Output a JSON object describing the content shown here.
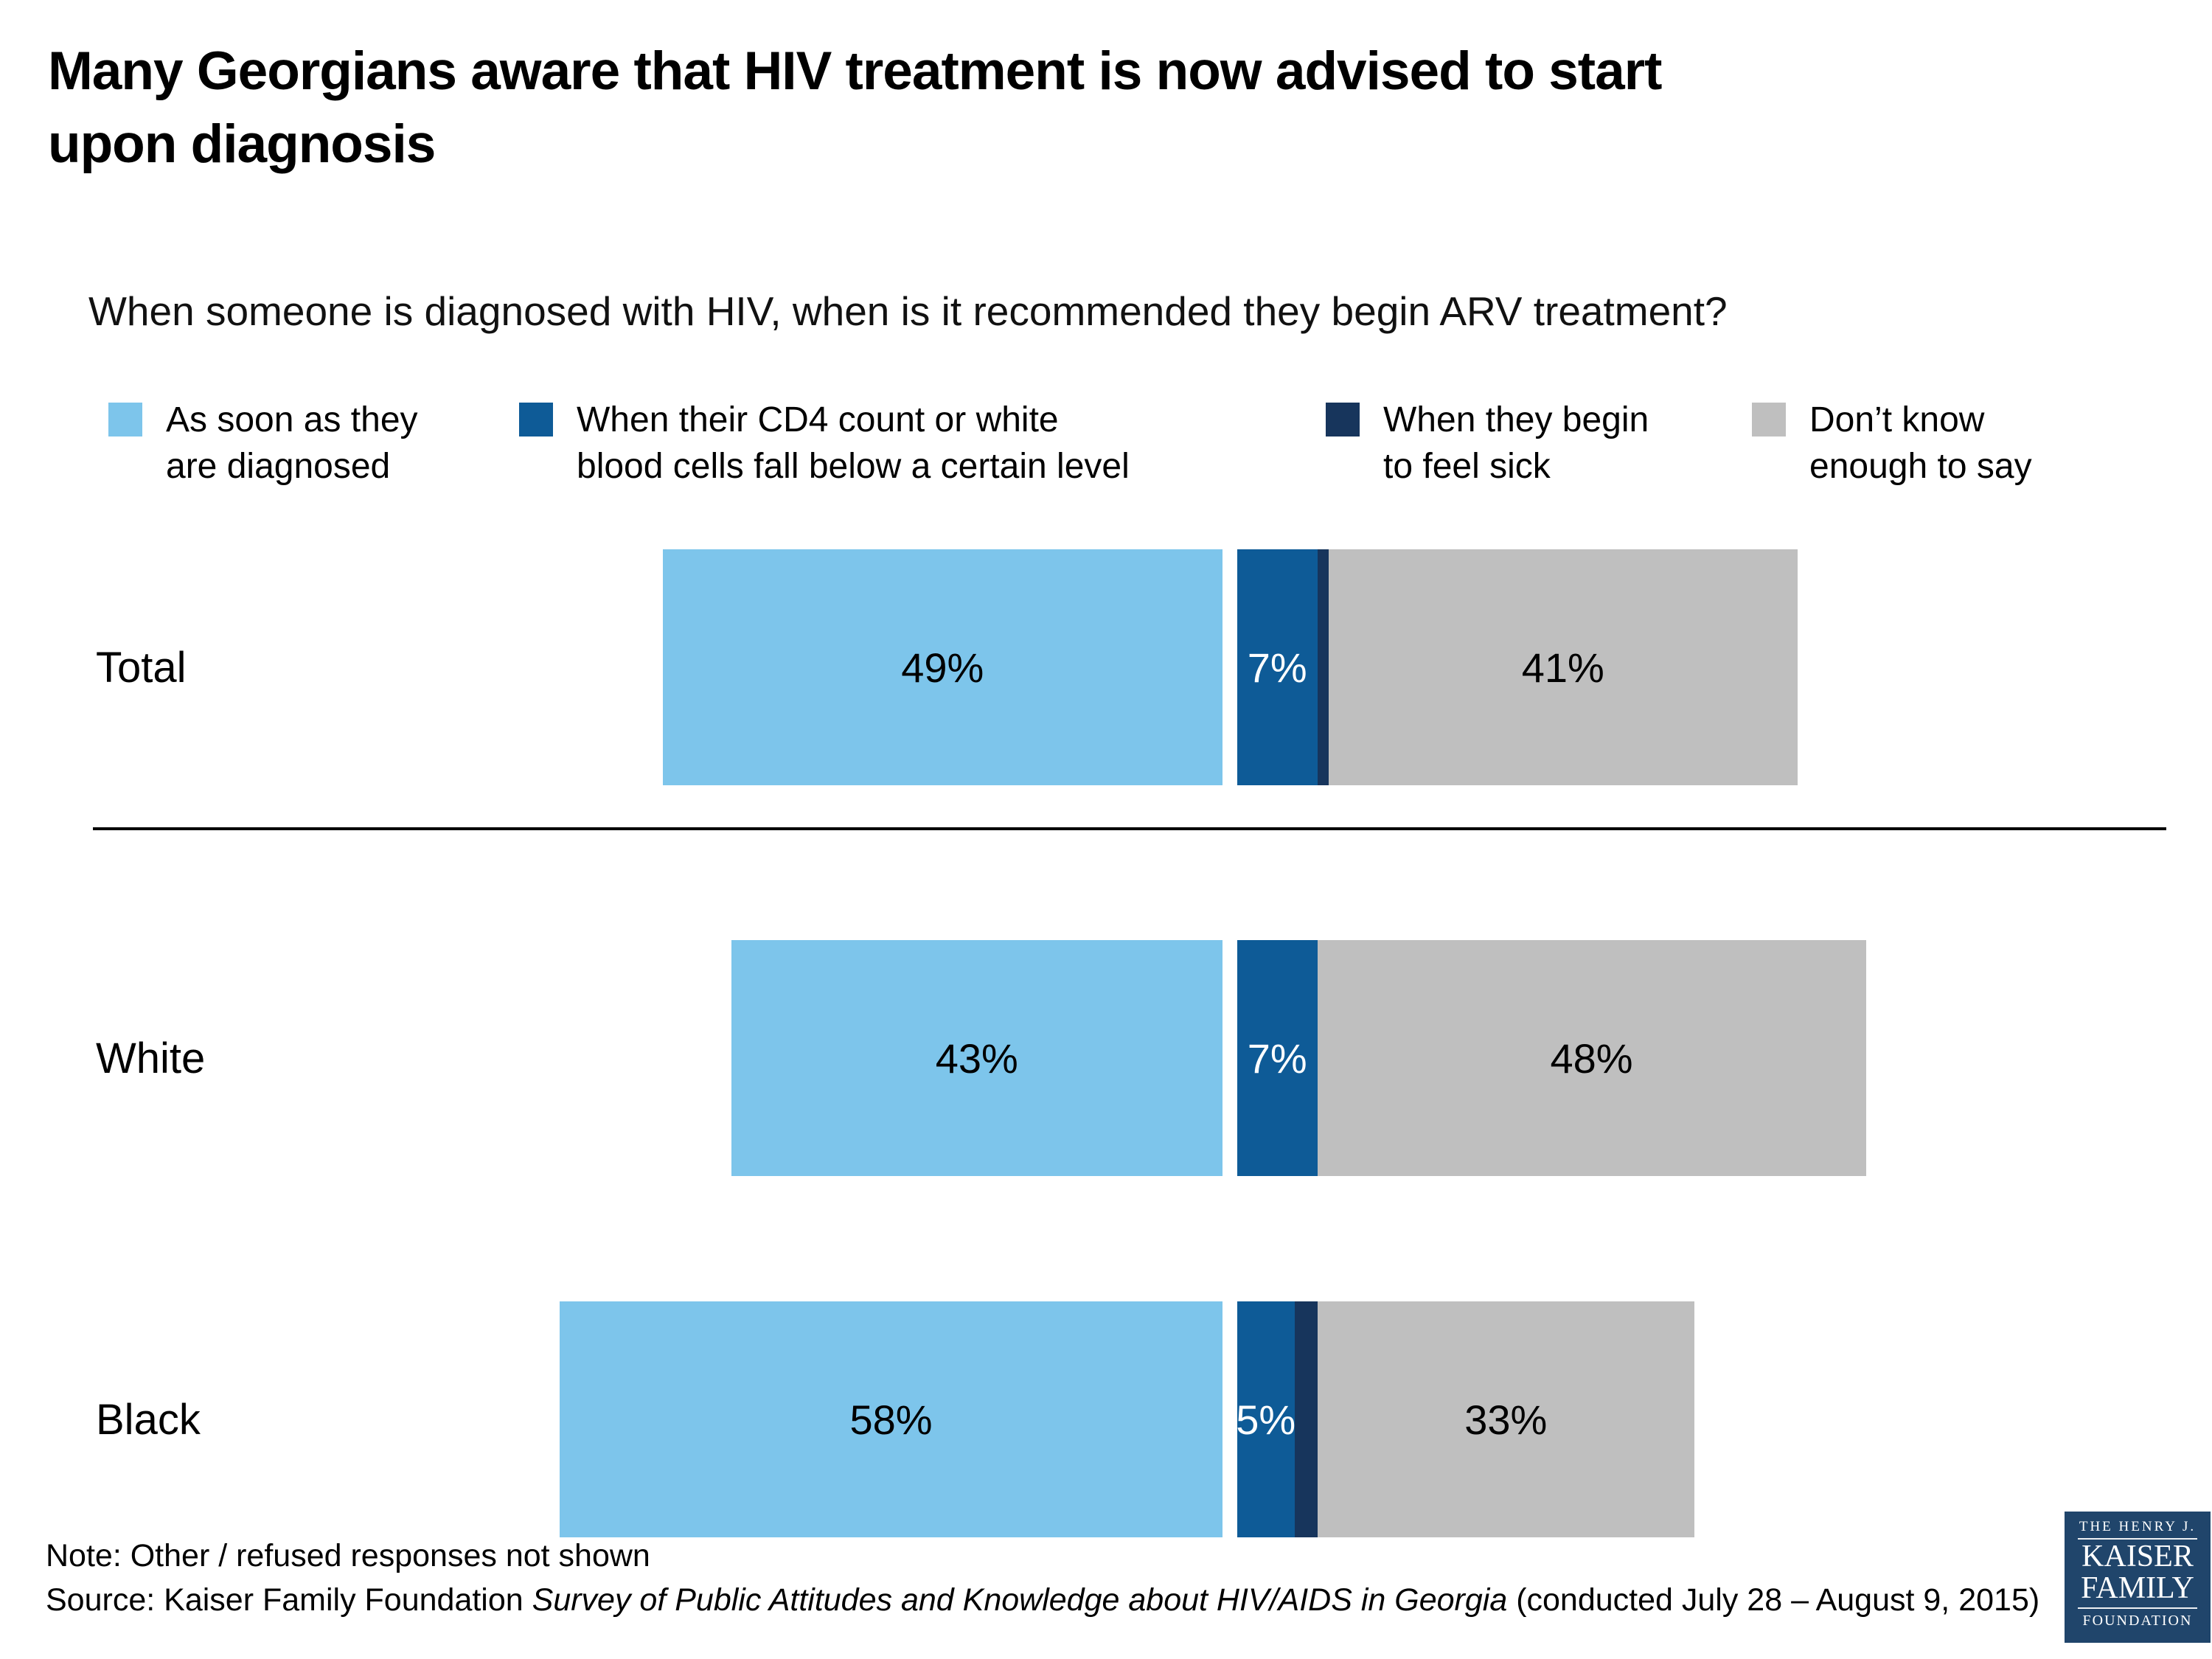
{
  "title_lines": [
    "Many Georgians aware that HIV treatment is now advised to start",
    "upon diagnosis"
  ],
  "question": "When someone is diagnosed with HIV, when is it recommended they begin ARV treatment?",
  "legend": [
    {
      "key": "diagnosed",
      "label": "As soon as they are diagnosed",
      "label_line1": "As soon as they",
      "label_line2": "are diagnosed",
      "color": "#7DC5EB"
    },
    {
      "key": "cd4",
      "label": "When their CD4 count or white blood cells fall below a certain level",
      "label_line1": "When their CD4 count or white",
      "label_line2": "blood cells fall below a certain level",
      "color": "#0E5B97"
    },
    {
      "key": "sick",
      "label": "When they begin to feel sick",
      "label_line1": "When they begin",
      "label_line2": "to feel sick",
      "color": "#17355C"
    },
    {
      "key": "dontknow",
      "label": "Don’t know enough to say",
      "label_line1": "Don’t know",
      "label_line2": "enough to say",
      "color": "#BFBFBF"
    }
  ],
  "chart_data": {
    "type": "bar",
    "orientation": "horizontal_stacked",
    "unit": "%",
    "title": "When someone is diagnosed with HIV, when is it recommended they begin ARV treatment?",
    "categories": [
      "Total",
      "White",
      "Black"
    ],
    "series": [
      {
        "key": "diagnosed",
        "name": "As soon as they are diagnosed",
        "color": "#7DC5EB",
        "label_color": "#000000",
        "values": [
          49,
          43,
          58
        ]
      },
      {
        "key": "cd4",
        "name": "When their CD4 count or white blood cells fall below a certain level",
        "color": "#0E5B97",
        "label_color": "#ffffff",
        "values": [
          7,
          7,
          5
        ]
      },
      {
        "key": "sick",
        "name": "When they begin to feel sick",
        "color": "#17355C",
        "label_color": "#000000",
        "callout": true,
        "values": [
          1,
          0,
          2
        ]
      },
      {
        "key": "dontknow",
        "name": "Don’t know enough to say",
        "color": "#BFBFBF",
        "label_color": "#000000",
        "values": [
          41,
          48,
          33
        ]
      }
    ],
    "value_label_format": "{value}%",
    "legend_position": "top",
    "axis": "none",
    "notes": "Light blue bars are right-aligned against a common baseline; remaining segments stack to the right after a small white gap. 1% and 2% segments are labeled outside with a left arrow."
  },
  "note": "Note: Other / refused responses not shown",
  "source": {
    "prefix": "Source: Kaiser Family Foundation ",
    "italic": "Survey of Public Attitudes and Knowledge about HIV/AIDS in Georgia",
    "suffix": " (conducted July 28 – August 9, 2015)"
  },
  "logo": {
    "line1": "THE HENRY J.",
    "line2": "KAISER",
    "line3": "FAMILY",
    "line4": "FOUNDATION",
    "bg_color": "#20456B"
  }
}
